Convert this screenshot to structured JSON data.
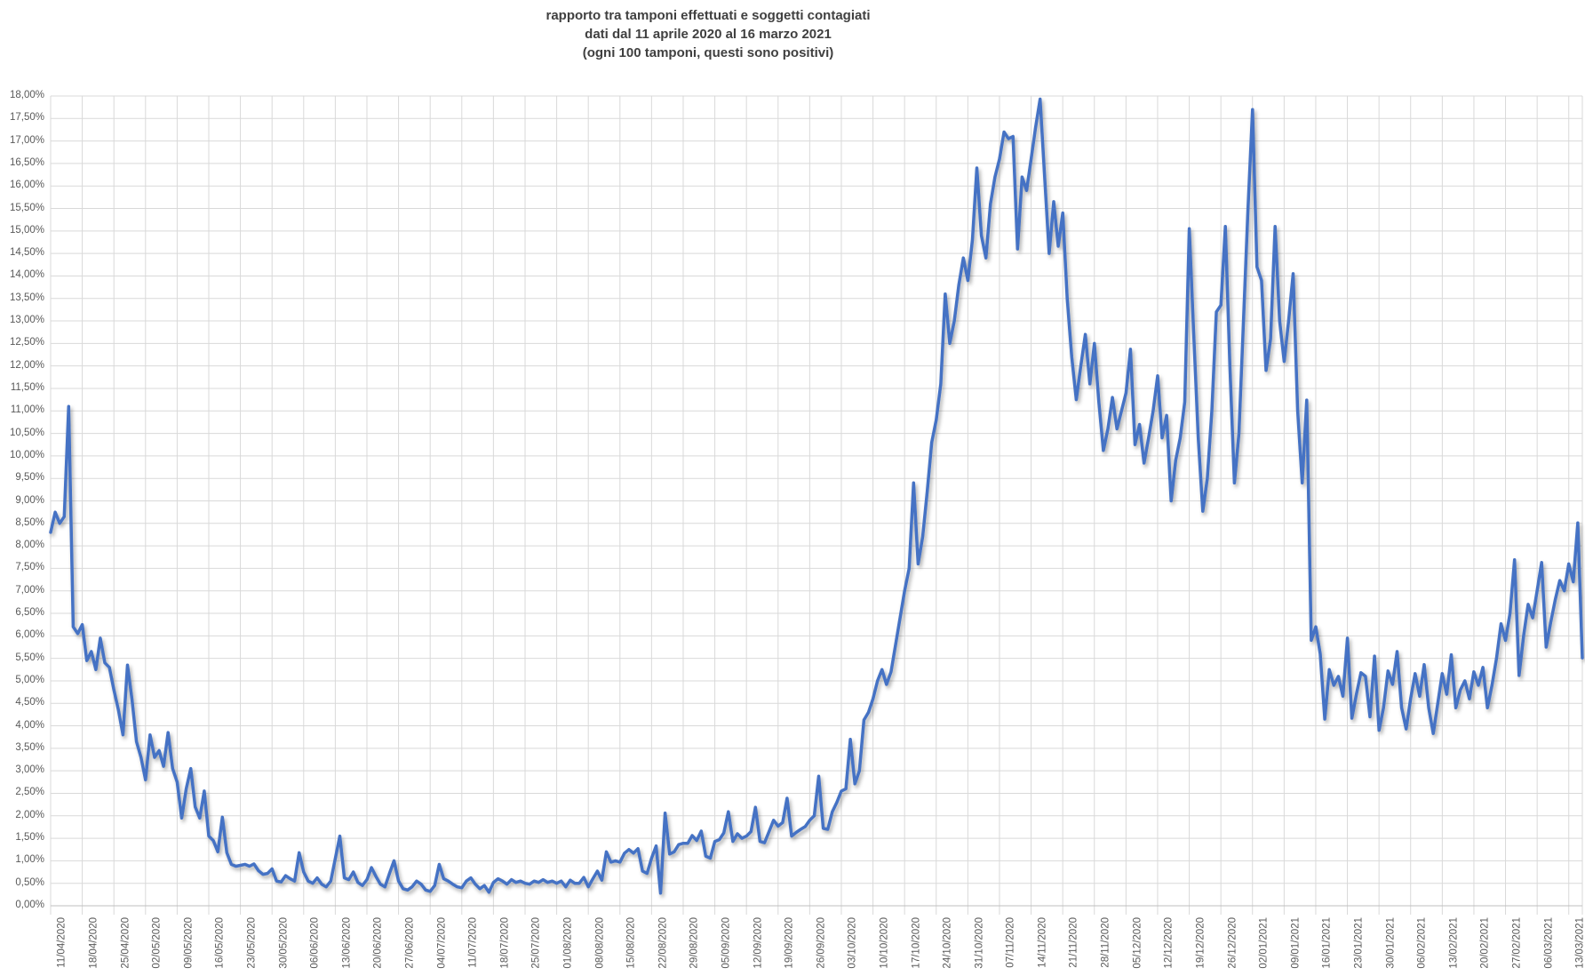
{
  "title": {
    "line1": "rapporto tra tamponi effettuati e soggetti contagiati",
    "line2": "dati dal 11 aprile 2020 al 16 marzo 2021",
    "line3": "(ogni 100 tamponi, questi sono positivi)"
  },
  "chart_data": {
    "type": "line",
    "title": "rapporto tra tamponi effettuati e soggetti contagiati — dati dal 11 aprile 2020 al 16 marzo 2021 (ogni 100 tamponi, questi sono positivi)",
    "xlabel": "",
    "ylabel": "",
    "unit": "%",
    "points_frequency": "daily",
    "start_date": "11/04/2020",
    "end_date": "16/03/2021",
    "ylim": [
      0,
      18
    ],
    "y_tick_step": 0.5,
    "grid": true,
    "legend": "none",
    "line_color": "#4472C4",
    "gridline_color": "#D9D9D9",
    "axis_line_color": "#BFBFBF",
    "label_color": "#595959",
    "title_color": "#404040",
    "y_tick_labels": [
      "18,00%",
      "17,50%",
      "17,00%",
      "16,50%",
      "16,00%",
      "15,50%",
      "15,00%",
      "14,50%",
      "14,00%",
      "13,50%",
      "13,00%",
      "12,50%",
      "12,00%",
      "11,50%",
      "11,00%",
      "10,50%",
      "10,00%",
      "9,50%",
      "9,00%",
      "8,50%",
      "8,00%",
      "7,50%",
      "7,00%",
      "6,50%",
      "6,00%",
      "5,50%",
      "5,00%",
      "4,50%",
      "4,00%",
      "3,50%",
      "3,00%",
      "2,50%",
      "2,00%",
      "1,50%",
      "1,00%",
      "0,50%",
      "0,00%"
    ],
    "x_tick_labels": [
      "11/04/2020",
      "18/04/2020",
      "25/04/2020",
      "02/05/2020",
      "09/05/2020",
      "16/05/2020",
      "23/05/2020",
      "30/05/2020",
      "06/06/2020",
      "13/06/2020",
      "20/06/2020",
      "27/06/2020",
      "04/07/2020",
      "11/07/2020",
      "18/07/2020",
      "25/07/2020",
      "01/08/2020",
      "08/08/2020",
      "15/08/2020",
      "22/08/2020",
      "29/08/2020",
      "05/09/2020",
      "12/09/2020",
      "19/09/2020",
      "26/09/2020",
      "03/10/2020",
      "10/10/2020",
      "17/10/2020",
      "24/10/2020",
      "31/10/2020",
      "07/11/2020",
      "14/11/2020",
      "21/11/2020",
      "28/11/2020",
      "05/12/2020",
      "12/12/2020",
      "19/12/2020",
      "26/12/2020",
      "02/01/2021",
      "09/01/2021",
      "16/01/2021",
      "23/01/2021",
      "30/01/2021",
      "06/02/2021",
      "13/02/2021",
      "20/02/2021",
      "27/02/2021",
      "06/03/2021",
      "13/03/2021"
    ],
    "x_ticks_every_n_points": 7,
    "values": [
      8.3,
      8.75,
      8.5,
      8.65,
      11.1,
      6.2,
      6.05,
      6.25,
      5.45,
      5.65,
      5.25,
      5.95,
      5.4,
      5.3,
      4.8,
      4.35,
      3.8,
      5.35,
      4.6,
      3.65,
      3.3,
      2.8,
      3.8,
      3.3,
      3.45,
      3.1,
      3.85,
      3.05,
      2.75,
      1.95,
      2.6,
      3.05,
      2.2,
      1.95,
      2.55,
      1.55,
      1.45,
      1.2,
      1.97,
      1.18,
      0.92,
      0.88,
      0.9,
      0.92,
      0.88,
      0.93,
      0.78,
      0.7,
      0.72,
      0.82,
      0.55,
      0.53,
      0.67,
      0.6,
      0.55,
      1.18,
      0.75,
      0.55,
      0.5,
      0.62,
      0.48,
      0.42,
      0.55,
      1.05,
      1.55,
      0.62,
      0.58,
      0.75,
      0.52,
      0.45,
      0.58,
      0.85,
      0.65,
      0.48,
      0.42,
      0.72,
      1.0,
      0.55,
      0.38,
      0.35,
      0.42,
      0.55,
      0.48,
      0.35,
      0.32,
      0.45,
      0.92,
      0.6,
      0.55,
      0.48,
      0.42,
      0.4,
      0.55,
      0.62,
      0.48,
      0.38,
      0.45,
      0.3,
      0.52,
      0.6,
      0.55,
      0.48,
      0.58,
      0.52,
      0.55,
      0.5,
      0.48,
      0.55,
      0.52,
      0.58,
      0.52,
      0.55,
      0.5,
      0.55,
      0.42,
      0.57,
      0.5,
      0.5,
      0.63,
      0.42,
      0.6,
      0.77,
      0.57,
      1.2,
      0.97,
      1.0,
      0.97,
      1.17,
      1.25,
      1.17,
      1.27,
      0.77,
      0.72,
      1.06,
      1.33,
      0.28,
      2.06,
      1.15,
      1.2,
      1.36,
      1.39,
      1.39,
      1.56,
      1.45,
      1.66,
      1.1,
      1.06,
      1.43,
      1.47,
      1.62,
      2.09,
      1.43,
      1.6,
      1.5,
      1.55,
      1.65,
      2.19,
      1.43,
      1.4,
      1.65,
      1.9,
      1.77,
      1.85,
      2.39,
      1.55,
      1.63,
      1.7,
      1.76,
      1.9,
      2.0,
      2.88,
      1.72,
      1.7,
      2.09,
      2.3,
      2.55,
      2.6,
      3.7,
      2.71,
      3.0,
      4.13,
      4.3,
      4.6,
      5.0,
      5.25,
      4.92,
      5.2,
      5.8,
      6.4,
      7.0,
      7.5,
      9.4,
      7.6,
      8.2,
      9.2,
      10.3,
      10.8,
      11.6,
      13.6,
      12.5,
      13.0,
      13.8,
      14.4,
      13.9,
      14.8,
      16.4,
      14.9,
      14.4,
      15.6,
      16.2,
      16.6,
      17.2,
      17.05,
      17.1,
      14.6,
      16.2,
      15.9,
      16.6,
      17.3,
      17.93,
      16.2,
      14.5,
      15.65,
      14.66,
      15.4,
      13.5,
      12.2,
      11.25,
      12.0,
      12.7,
      11.6,
      12.5,
      11.2,
      10.12,
      10.6,
      11.3,
      10.6,
      11.0,
      11.4,
      12.37,
      10.25,
      10.7,
      9.84,
      10.4,
      11.0,
      11.78,
      10.4,
      10.9,
      9.0,
      9.9,
      10.4,
      11.2,
      15.05,
      12.7,
      10.4,
      8.77,
      9.5,
      11.0,
      13.2,
      13.35,
      15.1,
      12.0,
      9.4,
      10.5,
      13.0,
      15.5,
      17.7,
      14.2,
      13.9,
      11.9,
      12.6,
      15.1,
      13.0,
      12.1,
      13.0,
      14.05,
      11.0,
      9.4,
      11.24,
      5.9,
      6.2,
      5.6,
      4.15,
      5.25,
      4.9,
      5.1,
      4.66,
      5.95,
      4.17,
      4.7,
      5.18,
      5.1,
      4.2,
      5.55,
      3.9,
      4.4,
      5.22,
      4.92,
      5.65,
      4.4,
      3.93,
      4.6,
      5.16,
      4.66,
      5.36,
      4.4,
      3.83,
      4.5,
      5.16,
      4.7,
      5.58,
      4.4,
      4.8,
      5.0,
      4.6,
      5.2,
      4.9,
      5.3,
      4.4,
      4.9,
      5.5,
      6.27,
      5.9,
      6.5,
      7.69,
      5.12,
      6.0,
      6.7,
      6.4,
      7.0,
      7.63,
      5.75,
      6.3,
      6.8,
      7.23,
      7.0,
      7.6,
      7.2,
      8.51,
      5.51
    ]
  }
}
